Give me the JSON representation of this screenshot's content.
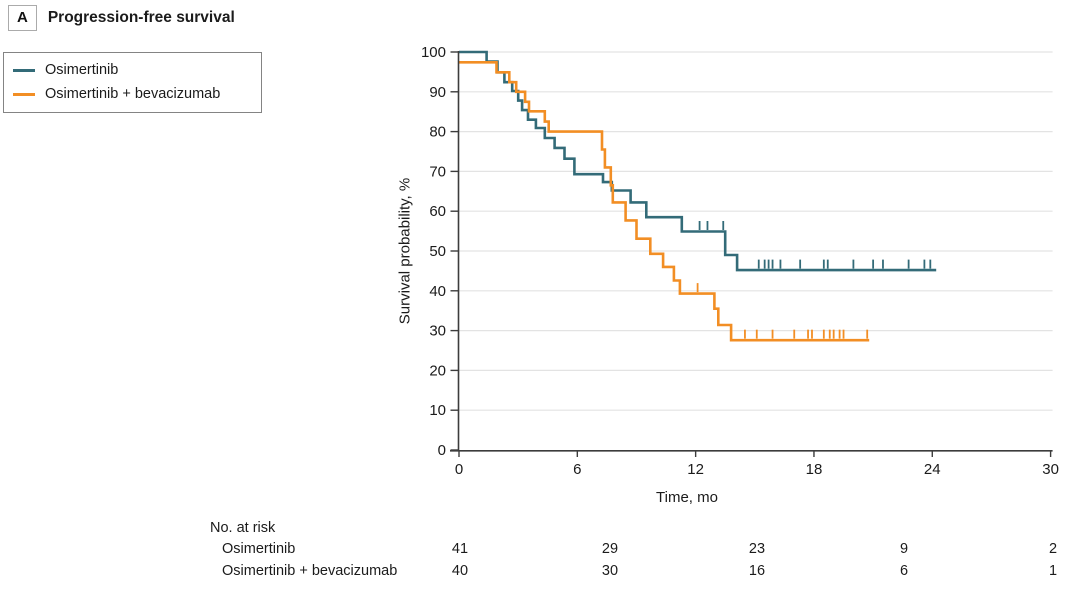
{
  "panel": {
    "label": "A",
    "title": "Progression-free survival"
  },
  "legend": {
    "items": [
      {
        "label": "Osimertinib",
        "color": "#336b78"
      },
      {
        "label": "Osimertinib + bevacizumab",
        "color": "#f28e24"
      }
    ]
  },
  "chart_data": {
    "type": "line",
    "subtype": "kaplan-meier-step",
    "title": "Progression-free survival",
    "xlabel": "Time, mo",
    "ylabel": "Survival probability, %",
    "xlim": [
      0,
      30
    ],
    "ylim": [
      0,
      100
    ],
    "x_ticks": [
      0,
      6,
      12,
      18,
      24,
      30
    ],
    "y_ticks": [
      0,
      10,
      20,
      30,
      40,
      50,
      60,
      70,
      80,
      90,
      100
    ],
    "grid": "horizontal",
    "legend_position": "outside-upper-left",
    "series": [
      {
        "name": "Osimertinib",
        "color": "#336b78",
        "steps": [
          [
            0,
            100
          ],
          [
            1.4,
            97.6
          ],
          [
            1.95,
            94.9
          ],
          [
            2.3,
            92.4
          ],
          [
            2.7,
            90.2
          ],
          [
            3.0,
            87.8
          ],
          [
            3.2,
            85.4
          ],
          [
            3.5,
            83.0
          ],
          [
            3.9,
            80.9
          ],
          [
            4.35,
            78.4
          ],
          [
            4.85,
            75.9
          ],
          [
            5.35,
            73.2
          ],
          [
            5.85,
            69.3
          ],
          [
            7.3,
            67.3
          ],
          [
            7.75,
            65.2
          ],
          [
            8.7,
            62.2
          ],
          [
            9.5,
            58.5
          ],
          [
            11.3,
            54.9
          ],
          [
            13.5,
            49.0
          ],
          [
            14.1,
            45.2
          ]
        ],
        "end_time": 24.2,
        "censor_times": [
          12.2,
          12.6,
          13.4,
          15.2,
          15.5,
          15.7,
          15.9,
          16.3,
          17.3,
          18.5,
          18.7,
          20.0,
          21.0,
          21.5,
          22.8,
          23.6,
          23.9
        ]
      },
      {
        "name": "Osimertinib + bevacizumab",
        "color": "#f28e24",
        "steps": [
          [
            0,
            97.4
          ],
          [
            1.9,
            94.9
          ],
          [
            2.55,
            92.4
          ],
          [
            2.9,
            90.0
          ],
          [
            3.35,
            87.5
          ],
          [
            3.55,
            85.1
          ],
          [
            4.35,
            82.5
          ],
          [
            4.55,
            80.0
          ],
          [
            7.25,
            75.5
          ],
          [
            7.4,
            71.0
          ],
          [
            7.7,
            66.5
          ],
          [
            7.8,
            62.2
          ],
          [
            8.45,
            57.7
          ],
          [
            9.0,
            53.1
          ],
          [
            9.7,
            49.3
          ],
          [
            10.35,
            46.0
          ],
          [
            10.9,
            42.6
          ],
          [
            11.2,
            39.3
          ],
          [
            12.95,
            35.5
          ],
          [
            13.15,
            31.4
          ],
          [
            13.8,
            27.6
          ]
        ],
        "end_time": 20.8,
        "censor_times": [
          12.1,
          14.5,
          15.1,
          15.9,
          17.0,
          17.7,
          17.9,
          18.5,
          18.8,
          19.0,
          19.3,
          19.5,
          20.7
        ]
      }
    ]
  },
  "risk_table": {
    "header": "No. at risk",
    "time_points": [
      0,
      6,
      12,
      18,
      24
    ],
    "rows": [
      {
        "label": "Osimertinib",
        "counts": [
          41,
          29,
          23,
          9,
          2
        ]
      },
      {
        "label": "Osimertinib + bevacizumab",
        "counts": [
          40,
          30,
          16,
          6,
          1
        ]
      }
    ]
  },
  "colors": {
    "grid": "#e3e3e3",
    "axis": "#3c3c3c",
    "text": "#1b1b1b"
  }
}
